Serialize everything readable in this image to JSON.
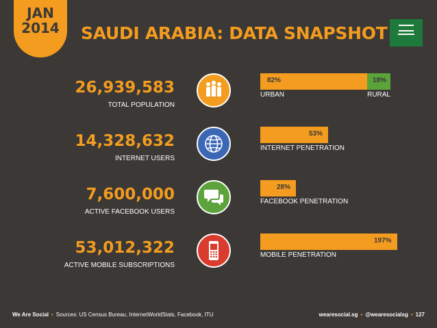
{
  "header": {
    "month": "JAN",
    "year": "2014",
    "title": "SAUDI ARABIA: DATA SNAPSHOT",
    "flag_icon": "saudi-arabia-flag"
  },
  "stats": [
    {
      "value": "26,939,583",
      "label": "TOTAL POPULATION",
      "icon": "people-icon",
      "icon_color": "#f39c1f",
      "bar": {
        "percent_text": "82%",
        "percent": 82,
        "secondary_text": "18%",
        "secondary_percent": 18,
        "sub_left": "URBAN",
        "sub_right": "RURAL"
      }
    },
    {
      "value": "14,328,632",
      "label": "INTERNET USERS",
      "icon": "globe-icon",
      "icon_color": "#3b67b5",
      "bar": {
        "percent_text": "53%",
        "percent": 53,
        "sub_left": "INTERNET PENETRATION"
      }
    },
    {
      "value": "7,600,000",
      "label": "ACTIVE FACEBOOK USERS",
      "icon": "chat-icon",
      "icon_color": "#5ba33a",
      "bar": {
        "percent_text": "28%",
        "percent": 28,
        "sub_left": "FACEBOOK PENETRATION"
      }
    },
    {
      "value": "53,012,322",
      "label": "ACTIVE MOBILE SUBSCRIPTIONS",
      "icon": "mobile-phone-icon",
      "icon_color": "#d93c2c",
      "bar": {
        "percent_text": "197%",
        "percent": 197,
        "sub_left": "MOBILE PENETRATION"
      }
    }
  ],
  "footer": {
    "brand": "We Are Social",
    "sources": "Sources: US Census Bureau, InternetWorldStats, Facebook, ITU",
    "site": "wearesocial.sg",
    "handle": "@wearesocialsg",
    "page": "127"
  },
  "colors": {
    "background": "#3b3836",
    "accent": "#f39c1f",
    "green": "#5ba33a"
  }
}
